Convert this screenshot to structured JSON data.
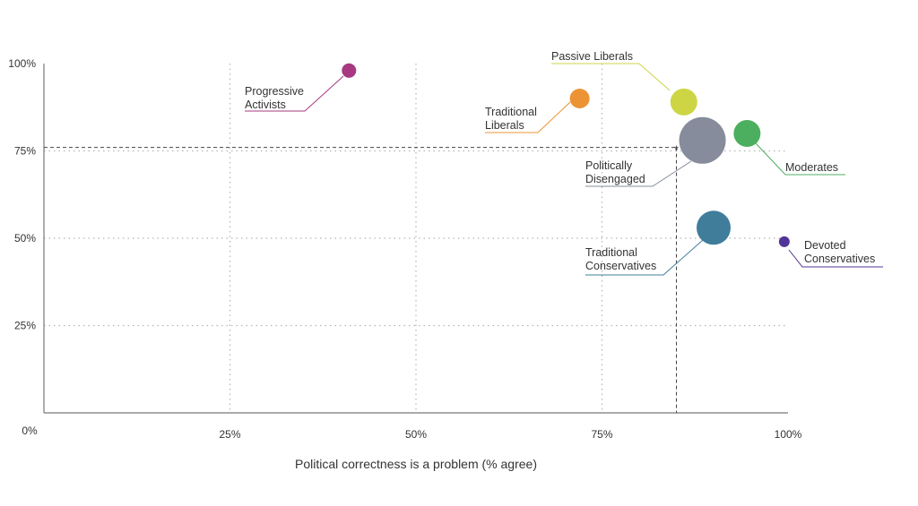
{
  "chart_data": {
    "type": "scatter",
    "title": "",
    "xlabel": "Political correctness is a problem (% agree)",
    "ylabel": "",
    "xlim": [
      0,
      100
    ],
    "ylim": [
      0,
      100
    ],
    "x_ticks": [
      {
        "value": 0,
        "label": "0%"
      },
      {
        "value": 25,
        "label": "25%"
      },
      {
        "value": 50,
        "label": "50%"
      },
      {
        "value": 75,
        "label": "75%"
      },
      {
        "value": 100,
        "label": "100%"
      }
    ],
    "y_ticks": [
      {
        "value": 25,
        "label": "25%"
      },
      {
        "value": 50,
        "label": "50%"
      },
      {
        "value": 75,
        "label": "75%"
      },
      {
        "value": 100,
        "label": "100%"
      }
    ],
    "grid": true,
    "reference_point": {
      "x": 85,
      "y": 76
    },
    "points": [
      {
        "name": "Progressive Activists",
        "lines": [
          "Progressive",
          "Activists"
        ],
        "x": 41,
        "y": 98,
        "size": 8,
        "color": "#a8387f"
      },
      {
        "name": "Traditional Liberals",
        "lines": [
          "Traditional",
          "Liberals"
        ],
        "x": 72,
        "y": 90,
        "size": 11,
        "color": "#ec9435"
      },
      {
        "name": "Passive Liberals",
        "lines": [
          "Passive Liberals"
        ],
        "x": 86,
        "y": 89,
        "size": 15,
        "color": "#cdd545"
      },
      {
        "name": "Politically Disengaged",
        "lines": [
          "Politically",
          "Disengaged"
        ],
        "x": 88.5,
        "y": 78,
        "size": 26,
        "color": "#868c9b"
      },
      {
        "name": "Moderates",
        "lines": [
          "Moderates"
        ],
        "x": 94.5,
        "y": 80,
        "size": 15,
        "color": "#4caf5f"
      },
      {
        "name": "Traditional Conservatives",
        "lines": [
          "Traditional",
          "Conservatives"
        ],
        "x": 90,
        "y": 53,
        "size": 19,
        "color": "#3f7d9b"
      },
      {
        "name": "Devoted Conservatives",
        "lines": [
          "Devoted",
          "Conservatives"
        ],
        "x": 99.5,
        "y": 49,
        "size": 6,
        "color": "#513497"
      }
    ]
  }
}
